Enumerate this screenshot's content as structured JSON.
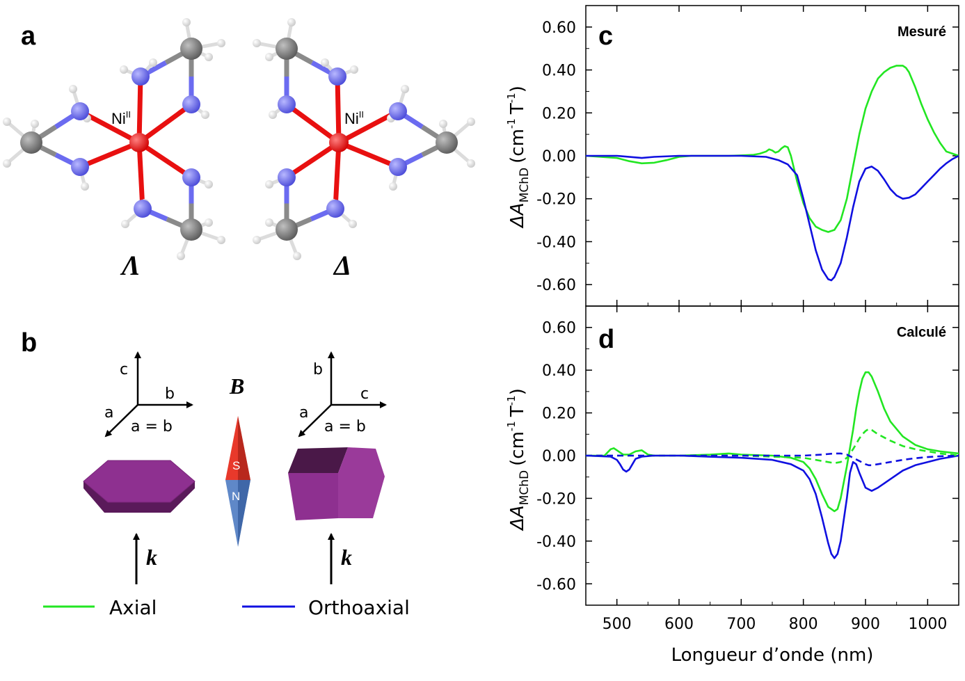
{
  "labels": {
    "panel_a": "a",
    "panel_b": "b",
    "panel_c": "c",
    "panel_d": "d",
    "ni_left": "Ni",
    "ni_right": "Ni",
    "ni_sup": "II",
    "lambda": "Λ",
    "delta": "Δ",
    "B": "B",
    "k1": "k",
    "k2": "k",
    "S": "S",
    "N": "N",
    "axes_left": {
      "c": "c",
      "b": "b",
      "a": "a",
      "eq": "a = b"
    },
    "axes_right": {
      "b": "b",
      "c": "c",
      "a": "a",
      "eq": "a = b"
    },
    "legend_axial": "Axial",
    "legend_ortho": "Orthoaxial"
  },
  "colors": {
    "axial": "#22e622",
    "ortho": "#1010e0",
    "ni": "#ff1a1a",
    "nitrogen": "#6b6bf0",
    "carbon": "#808080",
    "hydrogen": "#f2f2f2",
    "crystal": "#8a2a8a"
  },
  "chart_data": [
    {
      "type": "line",
      "panel": "c",
      "corner_label": "Mesuré",
      "xlim": [
        450,
        1050
      ],
      "ylim": [
        -0.7,
        0.7
      ],
      "yticks": [
        "0.60",
        "0.40",
        "0.20",
        "0.00",
        "-0.20",
        "-0.40",
        "-0.60"
      ],
      "ylabel_main": "ΔA",
      "ylabel_sub": "MChD",
      "ylabel_unit": "(cm",
      "ylabel_unit2": "T",
      "ylabel_sup": "-1",
      "series": [
        {
          "key": "axial",
          "style": "solid",
          "x": [
            450,
            500,
            520,
            540,
            560,
            580,
            600,
            620,
            650,
            680,
            700,
            720,
            730,
            740,
            745,
            750,
            755,
            760,
            765,
            770,
            775,
            780,
            790,
            800,
            810,
            820,
            830,
            840,
            850,
            860,
            870,
            880,
            890,
            900,
            910,
            920,
            930,
            940,
            950,
            955,
            960,
            965,
            970,
            980,
            990,
            1000,
            1010,
            1020,
            1030,
            1040,
            1050
          ],
          "y": [
            0.0,
            -0.01,
            -0.025,
            -0.035,
            -0.032,
            -0.02,
            -0.005,
            0.0,
            0.0,
            0.0,
            0.002,
            0.005,
            0.01,
            0.02,
            0.03,
            0.025,
            0.015,
            0.02,
            0.035,
            0.045,
            0.04,
            0.0,
            -0.12,
            -0.22,
            -0.29,
            -0.33,
            -0.345,
            -0.355,
            -0.345,
            -0.3,
            -0.2,
            -0.05,
            0.1,
            0.22,
            0.3,
            0.36,
            0.39,
            0.41,
            0.42,
            0.42,
            0.42,
            0.41,
            0.39,
            0.32,
            0.24,
            0.17,
            0.11,
            0.06,
            0.02,
            0.01,
            0.0
          ]
        },
        {
          "key": "ortho",
          "style": "solid",
          "x": [
            450,
            500,
            540,
            560,
            600,
            650,
            700,
            740,
            760,
            775,
            790,
            800,
            810,
            820,
            830,
            840,
            845,
            850,
            860,
            870,
            880,
            890,
            900,
            910,
            920,
            930,
            940,
            950,
            960,
            970,
            980,
            990,
            1000,
            1010,
            1020,
            1030,
            1040,
            1050
          ],
          "y": [
            0.0,
            0.0,
            -0.01,
            -0.005,
            0.0,
            0.0,
            0.0,
            -0.005,
            -0.02,
            -0.04,
            -0.09,
            -0.2,
            -0.32,
            -0.44,
            -0.53,
            -0.575,
            -0.58,
            -0.565,
            -0.5,
            -0.38,
            -0.24,
            -0.12,
            -0.06,
            -0.05,
            -0.07,
            -0.11,
            -0.155,
            -0.185,
            -0.2,
            -0.195,
            -0.18,
            -0.15,
            -0.12,
            -0.09,
            -0.06,
            -0.035,
            -0.015,
            0.0
          ]
        }
      ]
    },
    {
      "type": "line",
      "panel": "d",
      "corner_label": "Calculé",
      "xlim": [
        450,
        1050
      ],
      "ylim": [
        -0.7,
        0.7
      ],
      "yticks": [
        "0.60",
        "0.40",
        "0.20",
        "0.00",
        "-0.20",
        "-0.40",
        "-0.60"
      ],
      "xticks": [
        "500",
        "600",
        "700",
        "800",
        "900",
        "1000"
      ],
      "xlabel": "Longueur d’onde (nm)",
      "ylabel_main": "ΔA",
      "ylabel_sub": "MChD",
      "ylabel_unit": "(cm",
      "ylabel_unit2": "T",
      "ylabel_sup": "-1",
      "series": [
        {
          "key": "axial",
          "style": "solid",
          "x": [
            450,
            480,
            490,
            495,
            500,
            510,
            520,
            530,
            540,
            550,
            560,
            600,
            650,
            680,
            700,
            750,
            780,
            800,
            810,
            820,
            830,
            840,
            850,
            855,
            860,
            870,
            880,
            885,
            890,
            895,
            900,
            905,
            910,
            920,
            930,
            940,
            960,
            980,
            1000,
            1020,
            1050
          ],
          "y": [
            0.0,
            0.0,
            0.03,
            0.035,
            0.025,
            0.005,
            0.005,
            0.02,
            0.025,
            0.005,
            0.0,
            0.0,
            0.005,
            0.01,
            0.005,
            0.0,
            -0.01,
            -0.03,
            -0.06,
            -0.11,
            -0.18,
            -0.24,
            -0.26,
            -0.25,
            -0.2,
            -0.05,
            0.12,
            0.22,
            0.3,
            0.36,
            0.39,
            0.39,
            0.37,
            0.3,
            0.22,
            0.16,
            0.09,
            0.05,
            0.03,
            0.02,
            0.01
          ]
        },
        {
          "key": "ortho",
          "style": "solid",
          "x": [
            450,
            490,
            500,
            505,
            510,
            515,
            520,
            525,
            530,
            540,
            560,
            600,
            700,
            750,
            780,
            800,
            810,
            820,
            830,
            840,
            845,
            850,
            855,
            860,
            870,
            875,
            880,
            885,
            890,
            900,
            910,
            920,
            940,
            960,
            980,
            1000,
            1020,
            1050
          ],
          "y": [
            0.0,
            -0.005,
            -0.02,
            -0.04,
            -0.065,
            -0.075,
            -0.065,
            -0.04,
            -0.015,
            -0.005,
            0.0,
            0.0,
            -0.01,
            -0.02,
            -0.04,
            -0.07,
            -0.11,
            -0.18,
            -0.29,
            -0.41,
            -0.46,
            -0.48,
            -0.46,
            -0.4,
            -0.2,
            -0.08,
            -0.03,
            -0.04,
            -0.08,
            -0.15,
            -0.165,
            -0.15,
            -0.11,
            -0.07,
            -0.045,
            -0.03,
            -0.015,
            0.0
          ]
        },
        {
          "key": "axial",
          "style": "dashed",
          "x": [
            450,
            700,
            800,
            830,
            850,
            860,
            870,
            880,
            890,
            895,
            900,
            905,
            910,
            920,
            940,
            960,
            980,
            1000,
            1020,
            1050
          ],
          "y": [
            0.0,
            0.0,
            -0.01,
            -0.025,
            -0.035,
            -0.03,
            -0.01,
            0.03,
            0.08,
            0.1,
            0.115,
            0.125,
            0.12,
            0.1,
            0.07,
            0.045,
            0.03,
            0.02,
            0.01,
            0.0
          ]
        },
        {
          "key": "ortho",
          "style": "dashed",
          "x": [
            450,
            700,
            800,
            830,
            850,
            860,
            870,
            880,
            890,
            900,
            905,
            910,
            920,
            940,
            960,
            980,
            1000,
            1020,
            1050
          ],
          "y": [
            0.0,
            0.0,
            0.0,
            0.005,
            0.01,
            0.01,
            0.005,
            -0.01,
            -0.025,
            -0.04,
            -0.045,
            -0.045,
            -0.04,
            -0.03,
            -0.02,
            -0.012,
            -0.007,
            -0.003,
            0.0
          ]
        }
      ]
    }
  ]
}
